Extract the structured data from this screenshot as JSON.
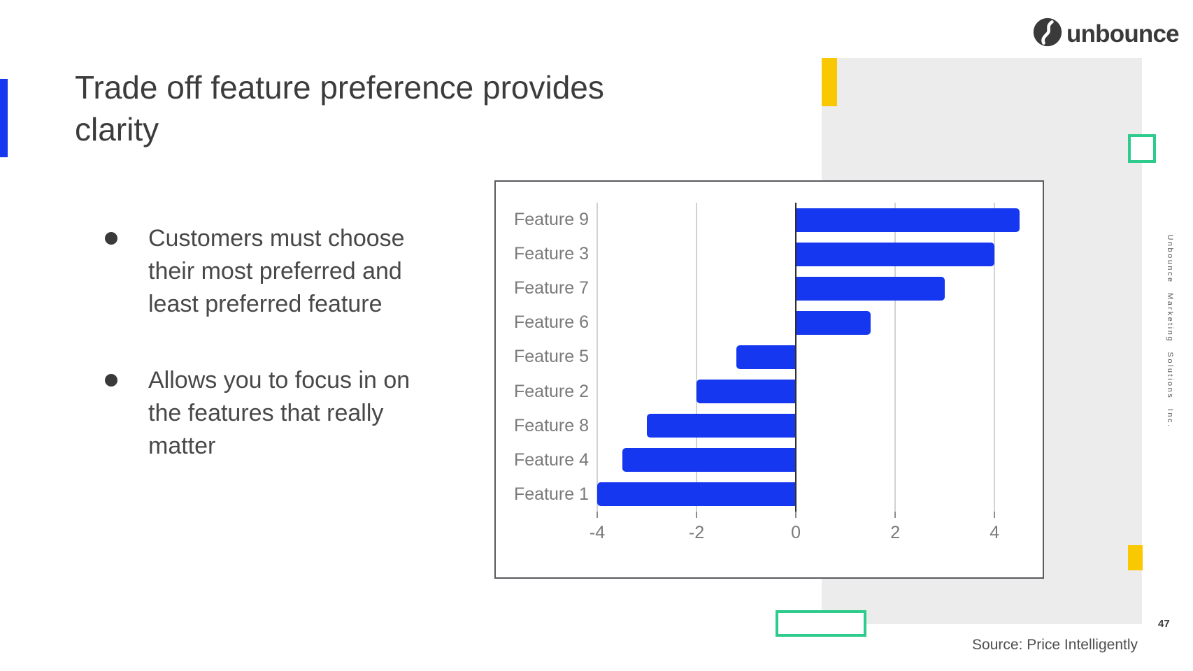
{
  "slide": {
    "title": "Trade off feature preference provides clarity",
    "logo_text": "unbounce",
    "bullets": [
      "Customers must choose their most preferred and least preferred feature",
      "Allows you to focus in on the features that really matter"
    ],
    "vertical_sidebar_text": "Unbounce Marketing Solutions Inc.",
    "page_number": "47",
    "source_note": "Source: Price Intelligently"
  },
  "colors": {
    "bar-blue": "#1637f0",
    "accent-yellow": "#fac800",
    "accent-green": "#2fcb8d",
    "panel-gray": "#ececec",
    "title-text": "#3c3c3c",
    "body-text": "#484848",
    "chart-label": "#7a7a7a"
  },
  "chart_data": {
    "type": "bar",
    "orientation": "horizontal",
    "title": "",
    "categories": [
      "Feature 9",
      "Feature 3",
      "Feature 7",
      "Feature 6",
      "Feature 5",
      "Feature 2",
      "Feature 8",
      "Feature 4",
      "Feature 1"
    ],
    "values": [
      4.5,
      4.0,
      3.0,
      1.5,
      -1.2,
      -2.0,
      -3.0,
      -3.5,
      -4.0
    ],
    "xticks": [
      -4,
      -2,
      0,
      2,
      4
    ],
    "xlim": [
      -4,
      4.87
    ],
    "grid": true,
    "legend": false,
    "bar_color": "#1637f0"
  }
}
